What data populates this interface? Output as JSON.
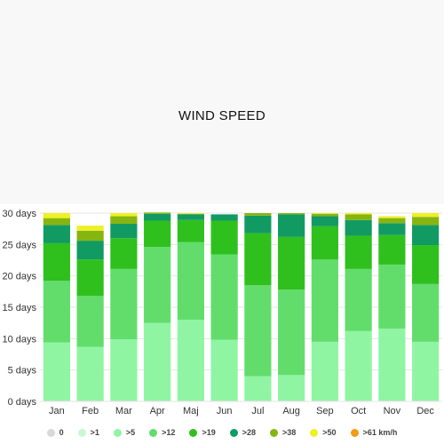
{
  "chart_data": {
    "type": "bar",
    "stacked": true,
    "title": "WIND SPEED",
    "categories": [
      "Jan",
      "Feb",
      "Mar",
      "Apr",
      "Maj",
      "Jun",
      "Jul",
      "Aug",
      "Sep",
      "Oct",
      "Nov",
      "Dec"
    ],
    "y_ticks": [
      "0 days",
      "5 days",
      "10 days",
      "15 days",
      "20 days",
      "25 days",
      "30 days"
    ],
    "ylim": [
      0,
      30
    ],
    "grid": true,
    "legend_position": "bottom",
    "series": [
      {
        "name": "0",
        "color": "#d9d9d9",
        "values": [
          0.1,
          0.1,
          0.1,
          0.1,
          0.1,
          0.1,
          0.1,
          0.1,
          0.1,
          0.1,
          0.1,
          0.1
        ]
      },
      {
        "name": ">1",
        "color": "#c8f7d4",
        "values": [
          0,
          0,
          0,
          0,
          0,
          0,
          0,
          0,
          0,
          0,
          0,
          0
        ]
      },
      {
        "name": ">5",
        "color": "#8ff5a2",
        "values": [
          9.3,
          8.6,
          9.8,
          12.4,
          12.9,
          9.7,
          3.9,
          4.1,
          9.4,
          11.1,
          11.5,
          9.4
        ]
      },
      {
        "name": ">12",
        "color": "#62dd6c",
        "values": [
          9.8,
          8.1,
          11.2,
          12.1,
          12.4,
          13.6,
          14.5,
          13.6,
          13.1,
          9.9,
          10.2,
          9.2
        ]
      },
      {
        "name": ">19",
        "color": "#2fc01e",
        "values": [
          6.0,
          5.8,
          4.9,
          4.2,
          3.5,
          5.4,
          8.3,
          8.4,
          5.3,
          5.3,
          4.7,
          6.2
        ]
      },
      {
        "name": ">28",
        "color": "#129a63",
        "values": [
          2.9,
          3.0,
          2.3,
          1.1,
          0.9,
          1.0,
          2.8,
          3.6,
          1.6,
          2.5,
          1.9,
          3.2
        ]
      },
      {
        "name": ">38",
        "color": "#86b511",
        "values": [
          1.1,
          1.6,
          1.2,
          0.2,
          0.1,
          0,
          0.4,
          0.2,
          0.4,
          0.9,
          0.8,
          1.3
        ]
      },
      {
        "name": ">50",
        "color": "#eef023",
        "values": [
          0.8,
          0.8,
          0.5,
          0,
          0.1,
          0,
          0,
          0,
          0.1,
          0.2,
          0.3,
          0.6
        ]
      },
      {
        "name": ">61 km/h",
        "color": "#f39a16",
        "values": [
          0,
          0,
          0,
          0,
          0,
          0,
          0,
          0,
          0,
          0,
          0,
          0
        ]
      }
    ]
  }
}
